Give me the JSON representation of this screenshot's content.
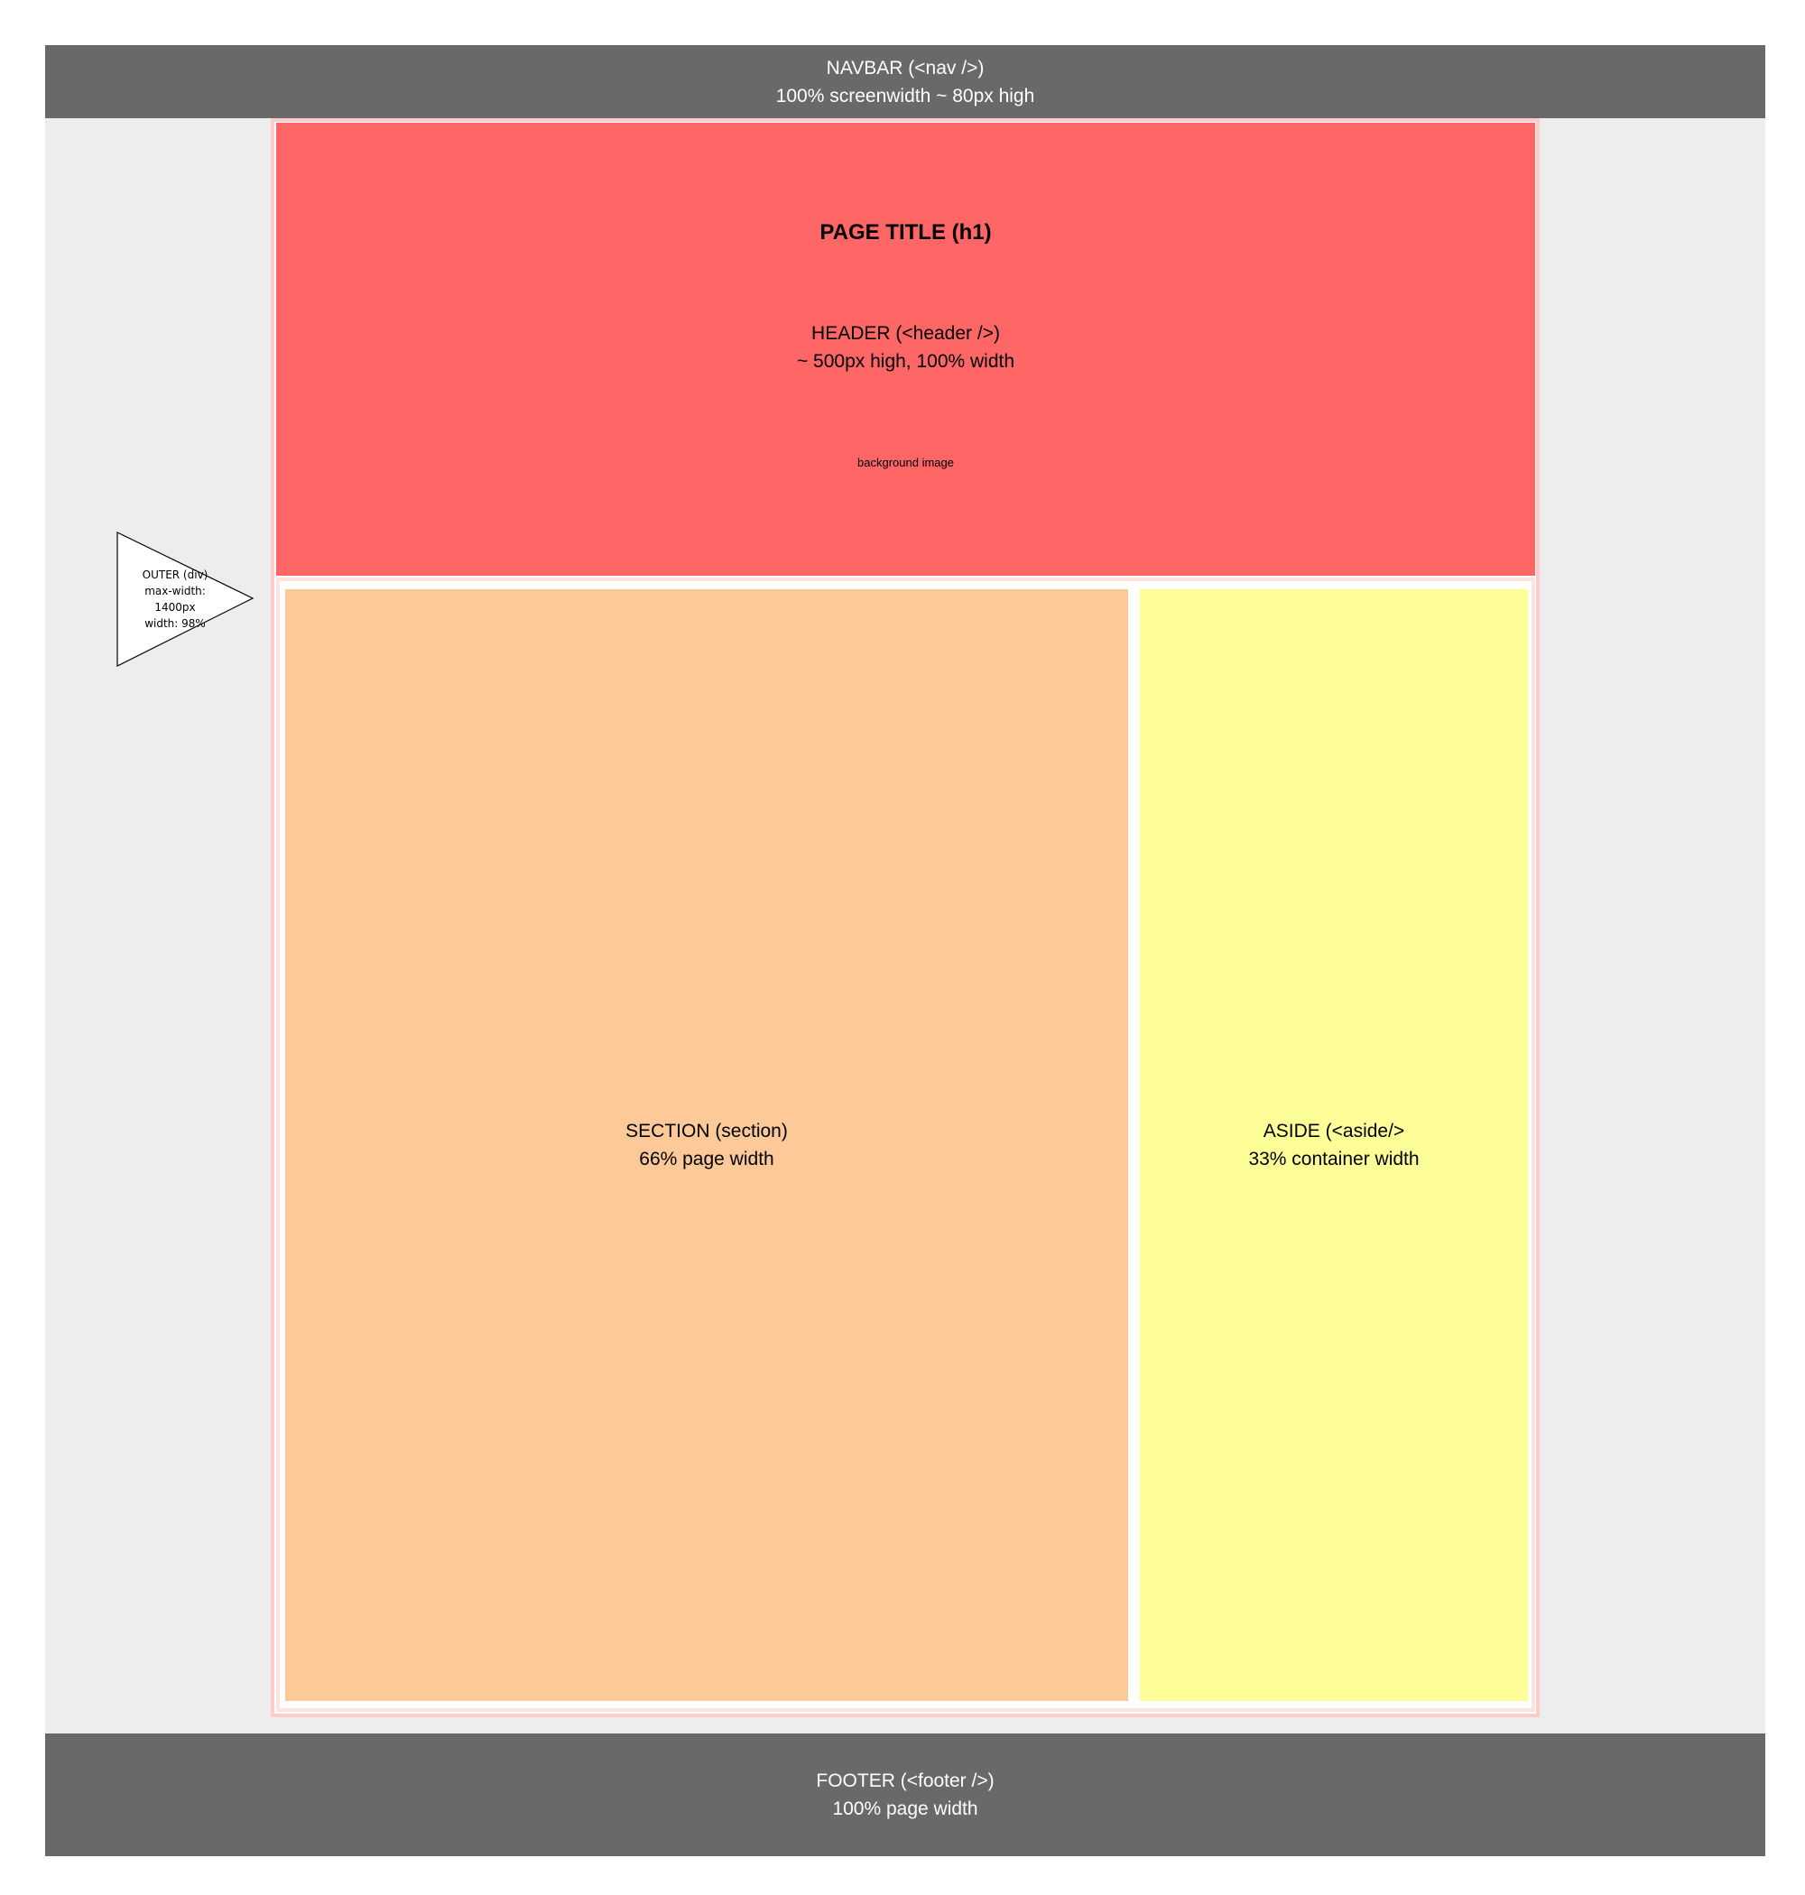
{
  "navbar": {
    "line1": "NAVBAR (<nav />)",
    "line2": "100% screenwidth ~ 80px high"
  },
  "header": {
    "title": "PAGE TITLE (h1)",
    "line1": "HEADER (<header />)",
    "line2": "~ 500px high, 100% width",
    "bg_label": "background image"
  },
  "section": {
    "line1": "SECTION (section)",
    "line2": "66% page width"
  },
  "aside": {
    "line1": "ASIDE (<aside/>",
    "line2": "33% container width"
  },
  "footer": {
    "line1": "FOOTER (<footer />)",
    "line2": "100% page width"
  },
  "annotation": {
    "lines": [
      "OUTER (div)",
      "max-width:",
      "1400px",
      "width: 98%"
    ]
  },
  "colors": {
    "navbar": "#696969",
    "page_background": "#ededed",
    "header": "#ff6666",
    "section": "#fdc999",
    "aside": "#fefe99",
    "footer": "#696969",
    "outer_border": "#ffcccc"
  }
}
